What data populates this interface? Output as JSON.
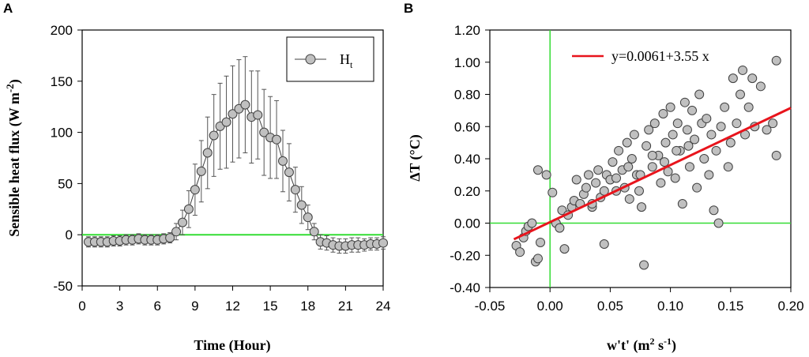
{
  "colors": {
    "marker_fill": "#c0c0c0",
    "marker_stroke": "#404040",
    "zero_line": "#33dd33",
    "fit_line": "#e8141c"
  },
  "chart_data": [
    {
      "panel_label": "A",
      "type": "line",
      "title": "",
      "xlabel": "Time (Hour)",
      "ylabel": {
        "base": "Sensible heat flux (W m",
        "sup": "-2",
        "close": ")"
      },
      "xlim": [
        0,
        24
      ],
      "ylim": [
        -50,
        200
      ],
      "xticks": [
        0,
        3,
        6,
        9,
        12,
        15,
        18,
        21,
        24
      ],
      "yticks": [
        -50,
        0,
        50,
        100,
        150,
        200
      ],
      "reference_line": {
        "y": 0
      },
      "legend": {
        "base": "H",
        "sub": "t",
        "position": "top-right"
      },
      "series": [
        {
          "name": "Ht",
          "x": [
            0.5,
            1.0,
            1.5,
            2.0,
            2.5,
            3.0,
            3.5,
            4.0,
            4.5,
            5.0,
            5.5,
            6.0,
            6.5,
            7.0,
            7.5,
            8.0,
            8.5,
            9.0,
            9.5,
            10.0,
            10.5,
            11.0,
            11.5,
            12.0,
            12.5,
            13.0,
            13.5,
            14.0,
            14.5,
            15.0,
            15.5,
            16.0,
            16.5,
            17.0,
            17.5,
            18.0,
            18.5,
            19.0,
            19.5,
            20.0,
            20.5,
            21.0,
            21.5,
            22.0,
            22.5,
            23.0,
            23.5,
            24.0
          ],
          "values": [
            -7,
            -7,
            -7,
            -7,
            -6,
            -6,
            -5,
            -5,
            -4,
            -5,
            -5,
            -5,
            -4,
            -3,
            3,
            12,
            25,
            44,
            62,
            80,
            97,
            106,
            110,
            118,
            123,
            127,
            115,
            117,
            100,
            95,
            93,
            72,
            61,
            44,
            29,
            17,
            3,
            -7,
            -8,
            -10,
            -11,
            -11,
            -10,
            -10,
            -10,
            -9,
            -9,
            -8
          ],
          "error": [
            5,
            5,
            5,
            5,
            5,
            5,
            5,
            5,
            5,
            5,
            5,
            5,
            5,
            5,
            8,
            12,
            18,
            25,
            30,
            35,
            40,
            42,
            45,
            47,
            48,
            47,
            45,
            43,
            42,
            40,
            38,
            30,
            28,
            22,
            18,
            12,
            8,
            7,
            7,
            7,
            7,
            7,
            7,
            7,
            6,
            6,
            6,
            6
          ]
        }
      ]
    },
    {
      "panel_label": "B",
      "type": "scatter",
      "title": "",
      "xlabel": {
        "base": "w't' (m",
        "sup1": "2",
        "mid": " s",
        "sup2": "-1",
        "close": ")"
      },
      "ylabel": "∆T (°C)",
      "xlim": [
        -0.05,
        0.2
      ],
      "ylim": [
        -0.4,
        1.2
      ],
      "xtick_labels": [
        "-0.05",
        "0.00",
        "0.05",
        "0.10",
        "0.15",
        "0.20"
      ],
      "ytick_labels": [
        "-0.40",
        "-0.20",
        "0.00",
        "0.20",
        "0.40",
        "0.60",
        "0.80",
        "1.00",
        "1.20"
      ],
      "reference_lines": {
        "x": 0,
        "y": 0
      },
      "fit": {
        "label": "y=0.0061+3.55 x",
        "intercept": 0.0061,
        "slope": 3.55,
        "x_range": [
          -0.03,
          0.2
        ]
      },
      "points": [
        [
          -0.028,
          -0.14
        ],
        [
          -0.025,
          -0.18
        ],
        [
          -0.022,
          -0.09
        ],
        [
          -0.02,
          -0.05
        ],
        [
          -0.018,
          -0.02
        ],
        [
          -0.015,
          0.0
        ],
        [
          -0.012,
          -0.24
        ],
        [
          -0.01,
          -0.22
        ],
        [
          -0.008,
          -0.12
        ],
        [
          -0.01,
          0.33
        ],
        [
          -0.003,
          0.3
        ],
        [
          0.002,
          0.19
        ],
        [
          0.005,
          0.0
        ],
        [
          0.008,
          -0.03
        ],
        [
          0.01,
          0.08
        ],
        [
          0.012,
          -0.16
        ],
        [
          0.015,
          0.05
        ],
        [
          0.018,
          0.1
        ],
        [
          0.02,
          0.14
        ],
        [
          0.022,
          0.27
        ],
        [
          0.025,
          0.12
        ],
        [
          0.028,
          0.18
        ],
        [
          0.03,
          0.22
        ],
        [
          0.032,
          0.3
        ],
        [
          0.035,
          0.1
        ],
        [
          0.038,
          0.25
        ],
        [
          0.04,
          0.33
        ],
        [
          0.042,
          0.16
        ],
        [
          0.045,
          -0.13
        ],
        [
          0.047,
          0.3
        ],
        [
          0.05,
          0.27
        ],
        [
          0.052,
          0.38
        ],
        [
          0.055,
          0.2
        ],
        [
          0.057,
          0.45
        ],
        [
          0.06,
          0.33
        ],
        [
          0.062,
          0.22
        ],
        [
          0.064,
          0.5
        ],
        [
          0.066,
          0.15
        ],
        [
          0.068,
          0.4
        ],
        [
          0.07,
          0.55
        ],
        [
          0.072,
          0.3
        ],
        [
          0.074,
          0.2
        ],
        [
          0.076,
          0.1
        ],
        [
          0.078,
          -0.26
        ],
        [
          0.08,
          0.48
        ],
        [
          0.082,
          0.58
        ],
        [
          0.085,
          0.35
        ],
        [
          0.087,
          0.62
        ],
        [
          0.09,
          0.42
        ],
        [
          0.092,
          0.25
        ],
        [
          0.094,
          0.68
        ],
        [
          0.096,
          0.5
        ],
        [
          0.098,
          0.32
        ],
        [
          0.1,
          0.72
        ],
        [
          0.102,
          0.55
        ],
        [
          0.104,
          0.28
        ],
        [
          0.106,
          0.62
        ],
        [
          0.108,
          0.45
        ],
        [
          0.11,
          0.12
        ],
        [
          0.112,
          0.75
        ],
        [
          0.114,
          0.58
        ],
        [
          0.116,
          0.35
        ],
        [
          0.118,
          0.7
        ],
        [
          0.12,
          0.52
        ],
        [
          0.122,
          0.22
        ],
        [
          0.124,
          0.8
        ],
        [
          0.126,
          0.62
        ],
        [
          0.128,
          0.4
        ],
        [
          0.13,
          0.65
        ],
        [
          0.132,
          0.3
        ],
        [
          0.134,
          0.55
        ],
        [
          0.136,
          0.08
        ],
        [
          0.138,
          0.45
        ],
        [
          0.14,
          0.0
        ],
        [
          0.142,
          0.6
        ],
        [
          0.145,
          0.72
        ],
        [
          0.148,
          0.35
        ],
        [
          0.15,
          0.5
        ],
        [
          0.152,
          0.9
        ],
        [
          0.155,
          0.62
        ],
        [
          0.158,
          0.8
        ],
        [
          0.16,
          0.95
        ],
        [
          0.162,
          0.55
        ],
        [
          0.165,
          0.72
        ],
        [
          0.168,
          0.9
        ],
        [
          0.17,
          0.6
        ],
        [
          0.175,
          0.85
        ],
        [
          0.18,
          0.58
        ],
        [
          0.185,
          0.62
        ],
        [
          0.188,
          1.01
        ],
        [
          0.188,
          0.42
        ],
        [
          0.035,
          0.12
        ],
        [
          0.045,
          0.2
        ],
        [
          0.055,
          0.28
        ],
        [
          0.065,
          0.35
        ],
        [
          0.075,
          0.3
        ],
        [
          0.085,
          0.42
        ],
        [
          0.095,
          0.38
        ],
        [
          0.105,
          0.45
        ],
        [
          0.115,
          0.48
        ]
      ]
    }
  ]
}
